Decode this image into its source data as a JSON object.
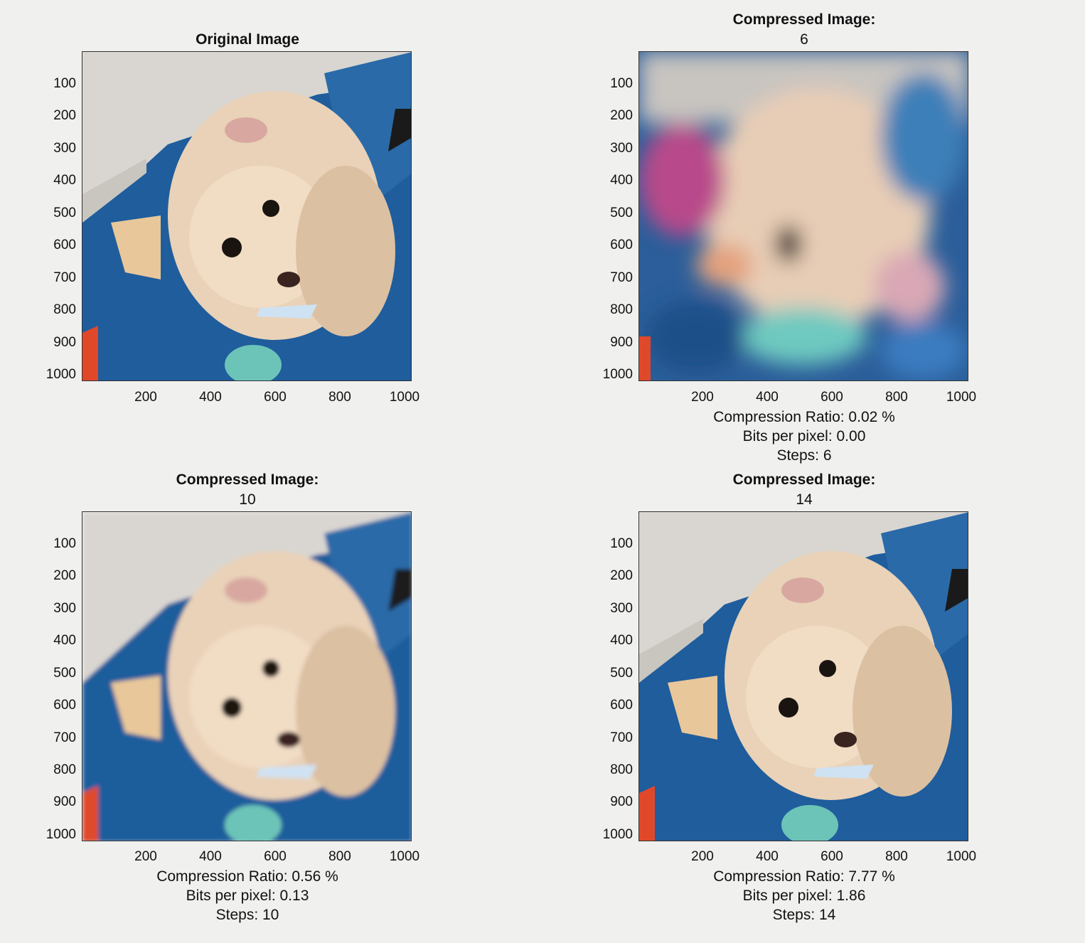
{
  "figure": {
    "panels": [
      {
        "id": "original",
        "title_line1": "Original Image",
        "title_line2": "",
        "caption": []
      },
      {
        "id": "compressed-6",
        "title_line1": "Compressed Image:",
        "title_line2": "6",
        "caption": [
          "Compression Ratio: 0.02 %",
          "Bits per pixel: 0.00",
          "Steps: 6"
        ]
      },
      {
        "id": "compressed-10",
        "title_line1": "Compressed Image:",
        "title_line2": "10",
        "caption": [
          "Compression Ratio: 0.56 %",
          "Bits per pixel: 0.13",
          "Steps: 10"
        ]
      },
      {
        "id": "compressed-14",
        "title_line1": "Compressed Image:",
        "title_line2": "14",
        "caption": [
          "Compression Ratio: 7.77 %",
          "Bits per pixel: 1.86",
          "Steps: 14"
        ]
      }
    ],
    "y_ticks": [
      "100",
      "200",
      "300",
      "400",
      "500",
      "600",
      "700",
      "800",
      "900",
      "1000"
    ],
    "x_ticks": [
      "200",
      "400",
      "600",
      "800",
      "1000"
    ],
    "axis_range": [
      1,
      1024
    ],
    "colors": {
      "background": "#f0f0ef",
      "blanket_blue": "#1f5d9c",
      "dog_fur": "#e9d2b8",
      "wall": "#d9d6d1",
      "accent_red": "#e0482a",
      "teal": "#6cc4b8"
    }
  }
}
